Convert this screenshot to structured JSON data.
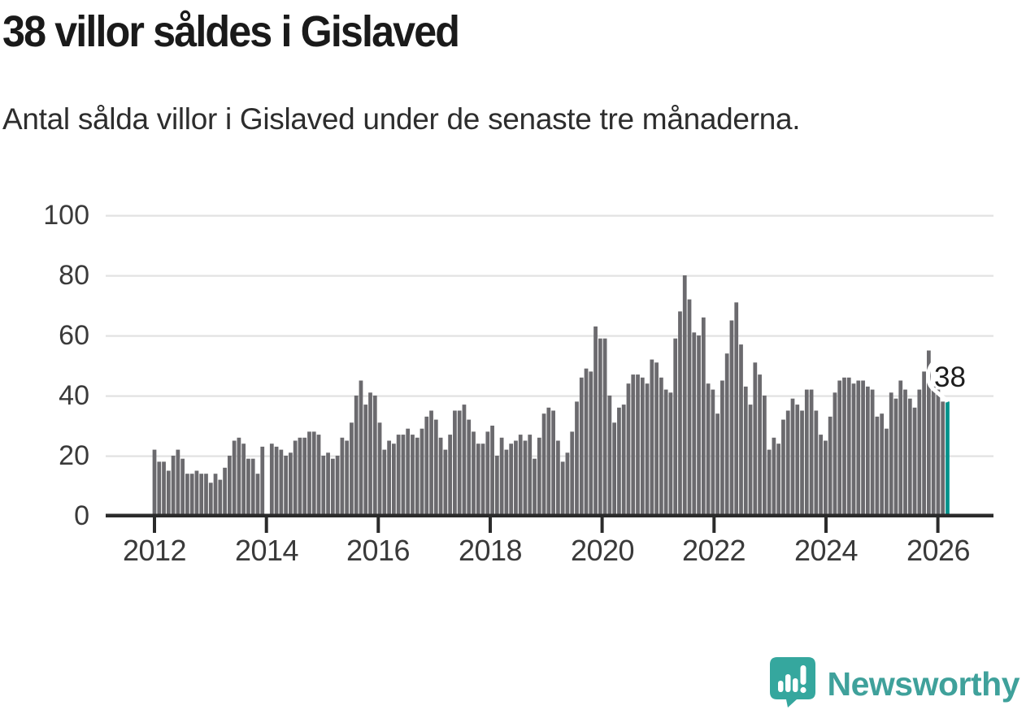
{
  "header": {
    "title": "38 villor såldes i Gislaved",
    "subtitle": "Antal sålda villor i Gislaved under de senaste tre månaderna."
  },
  "annotation": {
    "latest_value_label": "38"
  },
  "branding": {
    "wordmark": "Newsworthy"
  },
  "colors": {
    "bar": "#6b6a6e",
    "highlight_teal": "#00928b",
    "axis": "#2b2b2b",
    "gridline": "#e2e2e2",
    "tick_text": "#3a3a3a",
    "title_text": "#1a1a1a",
    "brand_teal": "#3fa19b",
    "brand_icon_teal": "#35a79e"
  },
  "chart_data": {
    "type": "bar",
    "title": "38 villor såldes i Gislaved",
    "subtitle": "Antal sålda villor i Gislaved under de senaste tre månaderna.",
    "xlabel": "",
    "ylabel": "",
    "frequency": "monthly",
    "x_start": "2012-01",
    "x_end": "2026-02",
    "ylim": [
      0,
      100
    ],
    "grid": true,
    "y_ticks": [
      "0",
      "20",
      "40",
      "60",
      "80",
      "100"
    ],
    "x_tick_labels": [
      "2012",
      "2014",
      "2016",
      "2018",
      "2020",
      "2022",
      "2024",
      "2026"
    ],
    "highlight_last": {
      "value": 38,
      "label": "38"
    },
    "values": [
      22,
      18,
      18,
      15,
      20,
      22,
      19,
      14,
      14,
      15,
      14,
      14,
      11,
      14,
      12,
      16,
      20,
      25,
      26,
      24,
      19,
      19,
      14,
      23,
      0,
      24,
      23,
      22,
      20,
      21,
      25,
      26,
      26,
      28,
      28,
      27,
      20,
      21,
      19,
      20,
      26,
      25,
      31,
      40,
      45,
      37,
      41,
      40,
      31,
      22,
      25,
      24,
      27,
      27,
      29,
      27,
      26,
      29,
      33,
      35,
      32,
      26,
      22,
      27,
      35,
      35,
      37,
      32,
      28,
      24,
      24,
      28,
      30,
      20,
      26,
      22,
      24,
      25,
      27,
      25,
      27,
      19,
      26,
      34,
      36,
      35,
      25,
      18,
      21,
      28,
      38,
      46,
      49,
      48,
      63,
      59,
      59,
      40,
      31,
      36,
      37,
      44,
      47,
      47,
      46,
      44,
      52,
      51,
      46,
      42,
      41,
      59,
      68,
      80,
      72,
      61,
      60,
      66,
      44,
      42,
      34,
      45,
      54,
      65,
      71,
      57,
      43,
      37,
      51,
      47,
      40,
      22,
      26,
      24,
      32,
      35,
      39,
      37,
      35,
      42,
      42,
      35,
      27,
      25,
      33,
      41,
      45,
      46,
      46,
      44,
      45,
      45,
      43,
      42,
      33,
      34,
      29,
      41,
      39,
      45,
      42,
      39,
      36,
      42,
      48,
      55,
      43,
      42,
      38,
      38
    ]
  }
}
